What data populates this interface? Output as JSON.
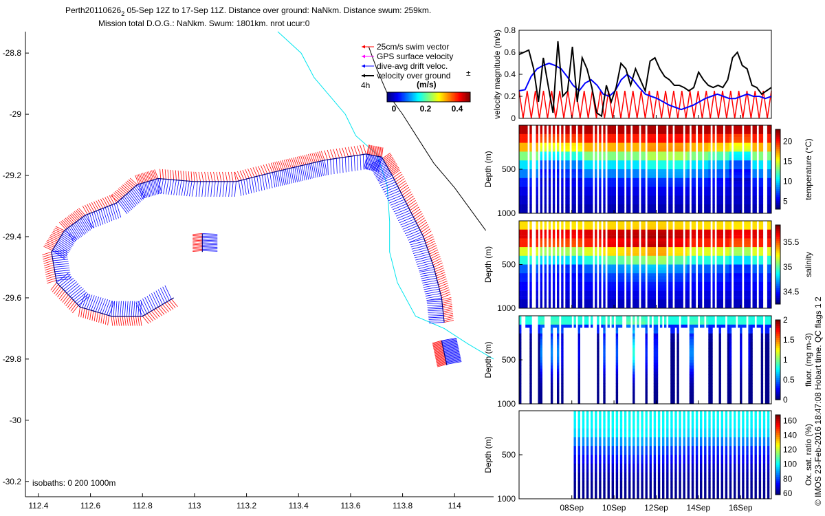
{
  "title": {
    "line1_main": "Perth20110626",
    "line1_sub": "2",
    "line1_rest": " 05-Sep 12Z to 17-Sep 11Z. Distance over ground: NaNkm. Distance swum: 259km.",
    "line2": "Mission total D.O.G.: NaNkm. Swum: 1801km. nrot ucur:0"
  },
  "credit": "© IMOS 23-Feb-2016 18:47:08 Hobart time. QC flags 1  2",
  "chart_data": [
    {
      "type": "scatter",
      "name": "track-map",
      "x": {
        "min": 112.35,
        "max": 114.15,
        "ticks": [
          112.4,
          112.6,
          112.8,
          113,
          113.2,
          113.4,
          113.6,
          113.8,
          114
        ],
        "tick_labels": [
          "112.4",
          "112.6",
          "112.8",
          "113",
          "113.2",
          "113.4",
          "113.6",
          "113.8",
          "114"
        ]
      },
      "y": {
        "min": -30.25,
        "max": -28.73,
        "ticks": [
          -28.8,
          -29,
          -29.2,
          -29.4,
          -29.6,
          -29.8,
          -30,
          -30.2
        ],
        "tick_labels": [
          "-28.8",
          "-29",
          "-29.2",
          "-29.4",
          "-29.6",
          "-29.8",
          "-30",
          "-30.2"
        ]
      },
      "legend": [
        {
          "label": "25cm/s swim vector",
          "color": "#ff0000"
        },
        {
          "label": "GPS surface velocity",
          "color": "#ff00ff"
        },
        {
          "label": "dive-avg drift veloc.",
          "color": "#0000ff"
        },
        {
          "label": "velocity over ground",
          "color": "#000000"
        }
      ],
      "legend_extra": "4h",
      "legend_extra_right": "±",
      "colorbar": {
        "label": "(m/s)",
        "ticks": [
          "0",
          "0.2",
          "0.4"
        ]
      },
      "isobaths_label": "isobaths: 0   200  1000m",
      "track": [
        {
          "lon": 113.96,
          "lat": -29.68
        },
        {
          "lon": 113.95,
          "lat": -29.6
        },
        {
          "lon": 113.92,
          "lat": -29.5
        },
        {
          "lon": 113.88,
          "lat": -29.4
        },
        {
          "lon": 113.82,
          "lat": -29.3
        },
        {
          "lon": 113.76,
          "lat": -29.2
        },
        {
          "lon": 113.72,
          "lat": -29.14
        },
        {
          "lon": 113.66,
          "lat": -29.13
        },
        {
          "lon": 113.5,
          "lat": -29.15
        },
        {
          "lon": 113.4,
          "lat": -29.17
        },
        {
          "lon": 113.3,
          "lat": -29.19
        },
        {
          "lon": 113.16,
          "lat": -29.22
        },
        {
          "lon": 113,
          "lat": -29.22
        },
        {
          "lon": 112.86,
          "lat": -29.21
        },
        {
          "lon": 112.78,
          "lat": -29.23
        },
        {
          "lon": 112.7,
          "lat": -29.29
        },
        {
          "lon": 112.58,
          "lat": -29.33
        },
        {
          "lon": 112.5,
          "lat": -29.38
        },
        {
          "lon": 112.45,
          "lat": -29.45
        },
        {
          "lon": 112.47,
          "lat": -29.55
        },
        {
          "lon": 112.56,
          "lat": -29.63
        },
        {
          "lon": 112.68,
          "lat": -29.66
        },
        {
          "lon": 112.8,
          "lat": -29.66
        },
        {
          "lon": 112.92,
          "lat": -29.6
        }
      ],
      "track_segment2": [
        {
          "lon": 113.03,
          "lat": -29.39
        },
        {
          "lon": 113.03,
          "lat": -29.45
        }
      ],
      "track_segment3": [
        {
          "lon": 113.95,
          "lat": -29.74
        },
        {
          "lon": 113.96,
          "lat": -29.78
        },
        {
          "lon": 113.97,
          "lat": -29.82
        }
      ],
      "isobath_0m": [
        {
          "lon": 113.67,
          "lat": -28.78
        },
        {
          "lon": 113.7,
          "lat": -28.85
        },
        {
          "lon": 113.74,
          "lat": -28.93
        },
        {
          "lon": 113.8,
          "lat": -29
        },
        {
          "lon": 113.86,
          "lat": -29.08
        },
        {
          "lon": 113.92,
          "lat": -29.16
        },
        {
          "lon": 114,
          "lat": -29.24
        },
        {
          "lon": 114.06,
          "lat": -29.31
        },
        {
          "lon": 114.12,
          "lat": -29.38
        }
      ],
      "isobath_200m": [
        {
          "lon": 113.32,
          "lat": -28.73
        },
        {
          "lon": 113.41,
          "lat": -28.8
        },
        {
          "lon": 113.46,
          "lat": -28.88
        },
        {
          "lon": 113.53,
          "lat": -28.95
        },
        {
          "lon": 113.58,
          "lat": -29
        },
        {
          "lon": 113.62,
          "lat": -29.07
        },
        {
          "lon": 113.7,
          "lat": -29.13
        },
        {
          "lon": 113.74,
          "lat": -29.23
        },
        {
          "lon": 113.75,
          "lat": -29.35
        },
        {
          "lon": 113.75,
          "lat": -29.45
        },
        {
          "lon": 113.78,
          "lat": -29.55
        },
        {
          "lon": 113.85,
          "lat": -29.66
        },
        {
          "lon": 113.96,
          "lat": -29.7
        },
        {
          "lon": 114.05,
          "lat": -29.75
        },
        {
          "lon": 114.15,
          "lat": -29.8
        }
      ]
    },
    {
      "type": "line",
      "name": "velocity-magnitude",
      "ylabel": "velocity magnitude (m/s)",
      "ylim": [
        0,
        0.8
      ],
      "yticks": [
        "0",
        "0.2",
        "0.4",
        "0.6",
        "0.8"
      ],
      "series": [
        {
          "name": "velocity over ground",
          "color": "#000000",
          "values": [
            0.58,
            0.6,
            0.62,
            0.45,
            0.15,
            0.55,
            0.3,
            0.05,
            0.7,
            0.2,
            0.25,
            0.65,
            0.15,
            0.55,
            0.45,
            0.28,
            0.05,
            0.02,
            0.3,
            0.15,
            0.28,
            0.5,
            0.45,
            0.3,
            0.45,
            0.35,
            0.25,
            0.52,
            0.55,
            0.45,
            0.38,
            0.35,
            0.3,
            0.3,
            0.28,
            0.25,
            0.28,
            0.42,
            0.35,
            0.3,
            0.28,
            0.3,
            0.28,
            0.35,
            0.55,
            0.6,
            0.48,
            0.45,
            0.3,
            0.28,
            0.22,
            0.25,
            0.28
          ]
        },
        {
          "name": "dive-avg drift veloc.",
          "color": "#0000ff",
          "values": [
            0.25,
            0.26,
            0.38,
            0.45,
            0.48,
            0.5,
            0.48,
            0.45,
            0.38,
            0.3,
            0.25,
            0.32,
            0.35,
            0.3,
            0.22,
            0.2,
            0.25,
            0.35,
            0.4,
            0.35,
            0.28,
            0.22,
            0.2,
            0.18,
            0.15,
            0.12,
            0.1,
            0.08,
            0.1,
            0.12,
            0.15,
            0.18,
            0.2,
            0.22,
            0.2,
            0.18,
            0.18,
            0.2,
            0.22,
            0.2,
            0.2,
            0.18,
            0.2
          ]
        },
        {
          "name": "25cm/s swim vector",
          "color": "#ff0000",
          "values": [
            0.25,
            0,
            0.25,
            0,
            0.25,
            0,
            0.25,
            0,
            0.25,
            0,
            0.25,
            0,
            0.25,
            0,
            0.25,
            0,
            0.25,
            0,
            0.25,
            0,
            0.25,
            0,
            0.25,
            0,
            0.25,
            0,
            0.25,
            0,
            0.25,
            0,
            0.25,
            0,
            0.25,
            0,
            0.25,
            0,
            0.25,
            0,
            0.25,
            0,
            0.25,
            0,
            0.25,
            0,
            0.25,
            0,
            0.25,
            0,
            0.25,
            0,
            0.25,
            0,
            0.25,
            0,
            0.25,
            0,
            0.25,
            0,
            0.25,
            0,
            0.25,
            0,
            0.25
          ]
        }
      ]
    },
    {
      "type": "heatmap",
      "name": "temperature-section",
      "ylabel": "Depth (m)",
      "yticks": [
        "500",
        "1000"
      ],
      "colorbar_label": "temperature (°C)",
      "colorbar_ticks": [
        "5",
        "10",
        "15",
        "20"
      ],
      "cmin": 3,
      "cmax": 23,
      "profile": [
        22,
        20,
        17,
        13,
        10,
        8,
        6,
        5,
        4.5,
        4
      ],
      "anomaly": [
        0,
        -3,
        -2,
        0,
        0,
        0,
        1,
        1,
        0,
        -1,
        -3,
        0
      ],
      "gaps": [
        14,
        18,
        23,
        27,
        35,
        41,
        46,
        52,
        59,
        63,
        74,
        81,
        92,
        105,
        112,
        118,
        125,
        140,
        152,
        160,
        171,
        182,
        196,
        210,
        221,
        236,
        244,
        252,
        262,
        274,
        280,
        292,
        304,
        320,
        331,
        340,
        348,
        352
      ]
    },
    {
      "type": "heatmap",
      "name": "salinity-section",
      "ylabel": "Depth (m)",
      "yticks": [
        "500",
        "1000"
      ],
      "colorbar_label": "salinity",
      "colorbar_ticks": [
        "34.5",
        "35",
        "35.5"
      ],
      "cmin": 34.25,
      "cmax": 35.85,
      "profile": [
        35.3,
        35.7,
        35.6,
        35.2,
        34.9,
        34.6,
        34.5,
        34.45,
        34.4,
        34.35
      ],
      "anomaly": [
        0,
        -0.1,
        -0.1,
        0,
        0.1,
        0.15,
        0.2,
        0.1,
        0,
        0,
        -0.1,
        0
      ],
      "gaps": [
        14,
        18,
        23,
        27,
        35,
        41,
        46,
        52,
        59,
        63,
        74,
        81,
        92,
        105,
        112,
        118,
        125,
        140,
        152,
        160,
        171,
        182,
        196,
        210,
        221,
        236,
        244,
        252,
        262,
        274,
        280,
        292,
        304,
        320,
        331,
        340,
        348,
        352
      ]
    },
    {
      "type": "heatmap",
      "name": "fluorescence-section",
      "ylabel": "Depth (m)",
      "yticks": [
        "500",
        "1000"
      ],
      "colorbar_label": "fluor. (mg m-3)",
      "colorbar_ticks": [
        "0",
        "0.5",
        "1",
        "1.5",
        "2"
      ],
      "cmin": 0,
      "cmax": 2,
      "profile": [
        0.8,
        0.3,
        0.05,
        0.02,
        0.02,
        0.02,
        0.02,
        0.02,
        0.02,
        0.02
      ],
      "anomaly": [
        0,
        0.5,
        0.2,
        0,
        0.4,
        0.8,
        0.3,
        0,
        0.5,
        0,
        0.2,
        0
      ],
      "gaps": [
        3,
        5,
        7,
        20,
        22,
        24,
        37,
        41,
        43,
        59,
        76,
        83,
        91,
        99,
        107,
        110,
        116,
        125,
        130,
        135,
        148,
        152,
        160,
        166,
        173,
        185,
        190,
        198,
        206,
        212,
        230,
        240,
        256,
        266,
        280,
        296,
        310,
        326,
        338,
        349
      ]
    },
    {
      "type": "heatmap",
      "name": "oxygen-section",
      "ylabel": "Depth (m)",
      "yticks": [
        "500",
        "1000"
      ],
      "colorbar_label": "Ox. sat. ratio (%)",
      "colorbar_ticks": [
        "60",
        "80",
        "100",
        "120",
        "140",
        "160"
      ],
      "cmin": 58,
      "cmax": 168,
      "profile": [
        100,
        98,
        95,
        85,
        75,
        70,
        65,
        62,
        60,
        60
      ],
      "anomaly": [
        0,
        0,
        0,
        2,
        4,
        6,
        4,
        2,
        0,
        0,
        1,
        0
      ],
      "gaps": [
        2,
        4,
        6,
        8,
        10,
        12,
        16,
        18,
        20,
        22,
        24,
        26,
        28,
        30,
        32,
        34,
        36,
        38,
        40,
        42,
        44,
        46,
        48,
        50,
        52,
        54,
        56,
        58,
        60,
        62,
        64,
        66,
        68,
        70,
        72,
        74,
        76
      ]
    }
  ],
  "time_axis": {
    "labels": [
      "08Sep",
      "10Sep",
      "12Sep",
      "14Sep",
      "16Sep"
    ],
    "days": [
      8,
      10,
      12,
      14,
      16
    ],
    "start_day": 5.5,
    "end_day": 17.46
  }
}
